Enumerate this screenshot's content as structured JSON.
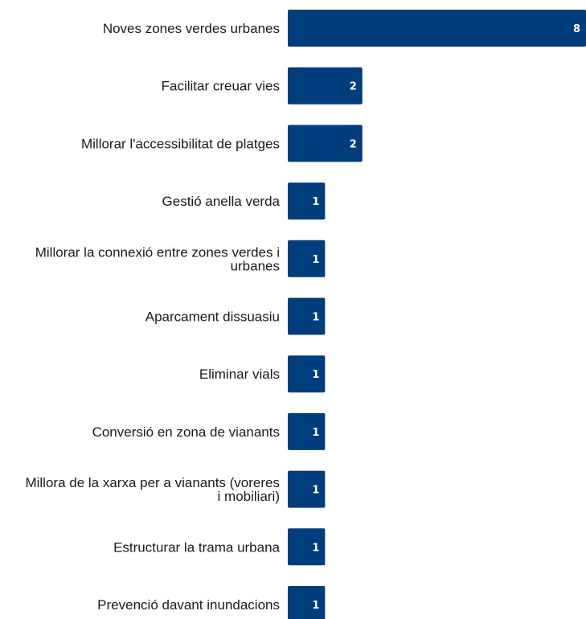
{
  "chart_data": {
    "type": "bar",
    "orientation": "horizontal",
    "categories": [
      [
        "Noves zones verdes urbanes"
      ],
      [
        "Facilitar creuar vies"
      ],
      [
        "Millorar l'accessibilitat de platges"
      ],
      [
        "Gestió anella verda"
      ],
      [
        "Millorar la connexió entre zones verdes i",
        "urbanes"
      ],
      [
        "Aparcament dissuasiu"
      ],
      [
        "Eliminar vials"
      ],
      [
        "Conversió en zona de vianants"
      ],
      [
        "Millora de la xarxa per a vianants (voreres",
        "i mobiliari)"
      ],
      [
        "Estructurar la trama urbana"
      ],
      [
        "Prevenció davant inundacions"
      ]
    ],
    "values": [
      8,
      2,
      2,
      1,
      1,
      1,
      1,
      1,
      1,
      1,
      1
    ],
    "xlim": [
      0,
      8
    ],
    "grid": false,
    "legend": "none",
    "bar_color": "#003d7c",
    "value_label_color": "#ffffff"
  }
}
